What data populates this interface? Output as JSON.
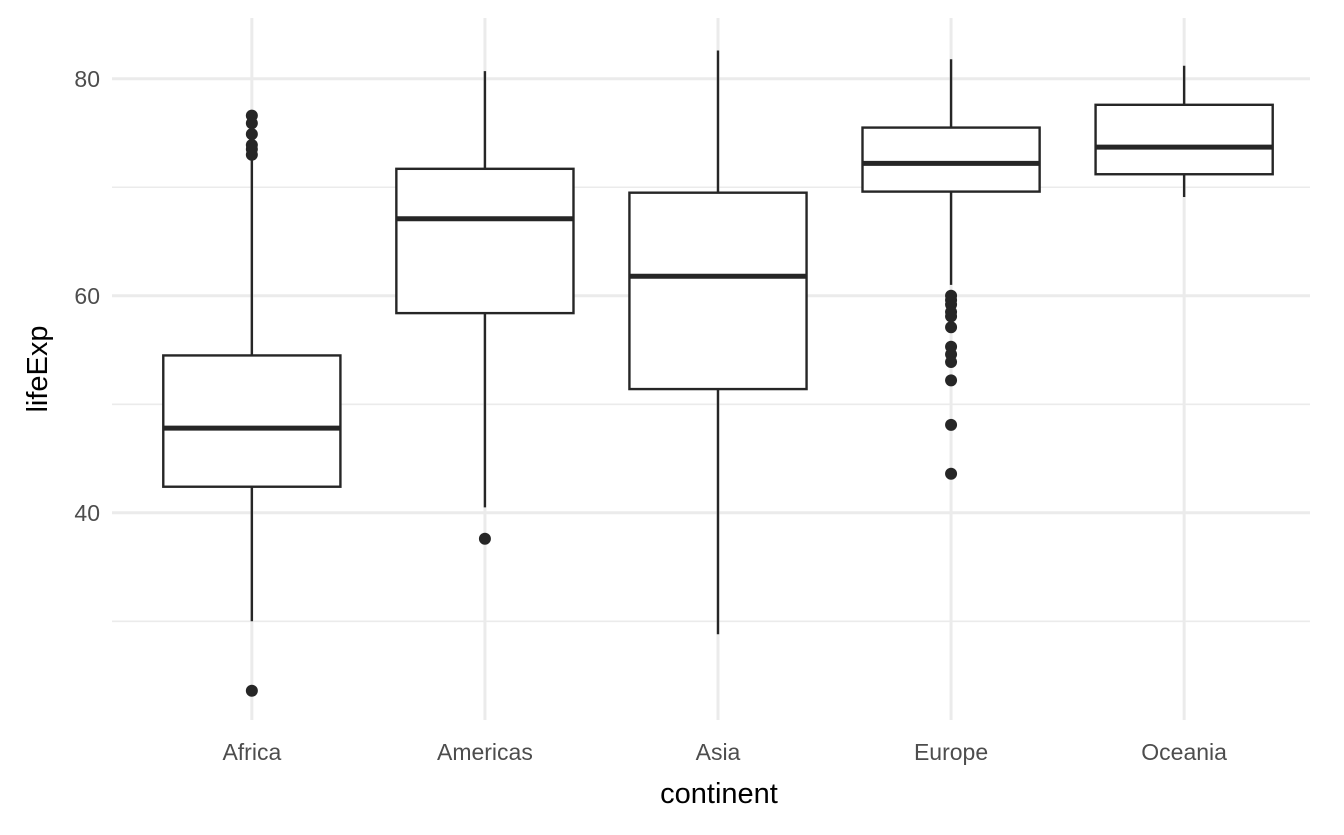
{
  "chart_data": {
    "type": "boxplot",
    "title": "",
    "xlabel": "continent",
    "ylabel": "lifeExp",
    "ylim": [
      20.9,
      85.6
    ],
    "y_ticks": [
      40,
      60,
      80
    ],
    "y_minor_ticks": [
      30,
      50,
      70
    ],
    "grid": true,
    "colors": {
      "box": "#262626",
      "grid": "#ebebeb",
      "tick_text": "#4d4d4d",
      "title_text": "#000000"
    },
    "categories": [
      "Africa",
      "Americas",
      "Asia",
      "Europe",
      "Oceania"
    ],
    "boxes": [
      {
        "category": "Africa",
        "whisker_low": 30.0,
        "q1": 42.4,
        "median": 47.8,
        "q3": 54.5,
        "whisker_high": 72.8,
        "outliers": [
          76.6,
          75.9,
          74.9,
          73.9,
          73.5,
          73.0,
          23.6
        ]
      },
      {
        "category": "Americas",
        "whisker_low": 40.5,
        "q1": 58.4,
        "median": 67.1,
        "q3": 71.7,
        "whisker_high": 80.7,
        "outliers": [
          37.6
        ]
      },
      {
        "category": "Asia",
        "whisker_low": 28.8,
        "q1": 51.4,
        "median": 61.8,
        "q3": 69.5,
        "whisker_high": 82.6,
        "outliers": []
      },
      {
        "category": "Europe",
        "whisker_low": 61.0,
        "q1": 69.6,
        "median": 72.2,
        "q3": 75.5,
        "whisker_high": 81.8,
        "outliers": [
          60.0,
          59.6,
          59.2,
          58.5,
          58.1,
          57.1,
          55.3,
          54.6,
          53.9,
          52.2,
          48.1,
          43.6
        ]
      },
      {
        "category": "Oceania",
        "whisker_low": 69.1,
        "q1": 71.2,
        "median": 73.7,
        "q3": 77.6,
        "whisker_high": 81.2,
        "outliers": []
      }
    ]
  }
}
